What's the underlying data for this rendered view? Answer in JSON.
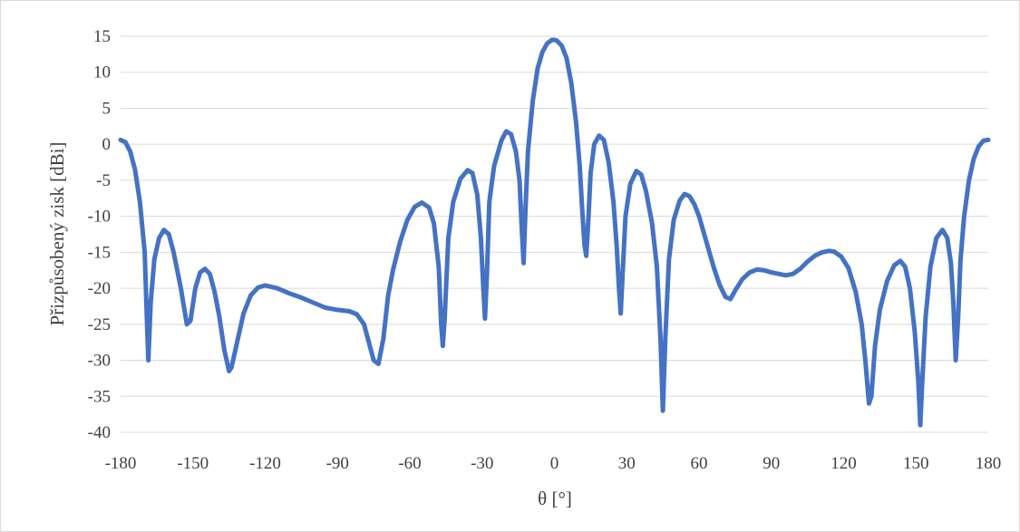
{
  "chart_data": {
    "type": "line",
    "title": "",
    "xlabel": "θ [°]",
    "ylabel": "Přizpůsobený zisk [dBi]",
    "xlim": [
      -180,
      180
    ],
    "ylim": [
      -40,
      15
    ],
    "x_ticks": [
      "-180",
      "-150",
      "-120",
      "-90",
      "-60",
      "-30",
      "0",
      "30",
      "60",
      "90",
      "120",
      "150",
      "180"
    ],
    "y_ticks": [
      "15",
      "10",
      "5",
      "0",
      "-5",
      "-10",
      "-15",
      "-20",
      "-25",
      "-30",
      "-35",
      "-40"
    ],
    "grid": true,
    "legend": "none",
    "series": [
      {
        "color": "#4472C4",
        "points": [
          [
            -180,
            0.6
          ],
          [
            -178,
            0.3
          ],
          [
            -176,
            -1.0
          ],
          [
            -174,
            -3.5
          ],
          [
            -172,
            -8.0
          ],
          [
            -170,
            -15.0
          ],
          [
            -169,
            -25.0
          ],
          [
            -168.5,
            -30.0
          ],
          [
            -167.5,
            -22.0
          ],
          [
            -166,
            -16.0
          ],
          [
            -164,
            -13.0
          ],
          [
            -162,
            -11.9
          ],
          [
            -160,
            -12.5
          ],
          [
            -158,
            -15.0
          ],
          [
            -155,
            -20.0
          ],
          [
            -152.5,
            -25.0
          ],
          [
            -151,
            -24.5
          ],
          [
            -149,
            -20.0
          ],
          [
            -147,
            -17.8
          ],
          [
            -145,
            -17.3
          ],
          [
            -143,
            -18.0
          ],
          [
            -141,
            -20.5
          ],
          [
            -139,
            -24.0
          ],
          [
            -137,
            -28.5
          ],
          [
            -135,
            -31.5
          ],
          [
            -134,
            -31.0
          ],
          [
            -132,
            -28.0
          ],
          [
            -129,
            -23.5
          ],
          [
            -126,
            -21.0
          ],
          [
            -123,
            -19.9
          ],
          [
            -120,
            -19.6
          ],
          [
            -115,
            -20.0
          ],
          [
            -110,
            -20.7
          ],
          [
            -105,
            -21.3
          ],
          [
            -100,
            -22.0
          ],
          [
            -95,
            -22.7
          ],
          [
            -90,
            -23.0
          ],
          [
            -85,
            -23.2
          ],
          [
            -82,
            -23.6
          ],
          [
            -79,
            -25.0
          ],
          [
            -77,
            -27.5
          ],
          [
            -75,
            -30.0
          ],
          [
            -73,
            -30.5
          ],
          [
            -71,
            -27.0
          ],
          [
            -69,
            -21.0
          ],
          [
            -67,
            -17.5
          ],
          [
            -64,
            -13.5
          ],
          [
            -61,
            -10.5
          ],
          [
            -58,
            -8.7
          ],
          [
            -55,
            -8.1
          ],
          [
            -52,
            -8.8
          ],
          [
            -50,
            -11.0
          ],
          [
            -48,
            -17.0
          ],
          [
            -47,
            -25.0
          ],
          [
            -46.3,
            -28.0
          ],
          [
            -45.5,
            -24.0
          ],
          [
            -44,
            -13.0
          ],
          [
            -42,
            -8.0
          ],
          [
            -39,
            -4.8
          ],
          [
            -36,
            -3.6
          ],
          [
            -34,
            -4.0
          ],
          [
            -32,
            -7.0
          ],
          [
            -30.5,
            -13.0
          ],
          [
            -29.5,
            -20.0
          ],
          [
            -28.8,
            -24.2
          ],
          [
            -28,
            -18.0
          ],
          [
            -27,
            -8.0
          ],
          [
            -25,
            -3.0
          ],
          [
            -22,
            0.5
          ],
          [
            -20,
            1.8
          ],
          [
            -18,
            1.4
          ],
          [
            -16,
            -1.0
          ],
          [
            -14.5,
            -5.0
          ],
          [
            -13.5,
            -12.0
          ],
          [
            -12.8,
            -16.5
          ],
          [
            -12,
            -9.0
          ],
          [
            -11,
            -1.0
          ],
          [
            -9,
            6.0
          ],
          [
            -7,
            10.5
          ],
          [
            -5,
            12.8
          ],
          [
            -3,
            14.0
          ],
          [
            -1,
            14.5
          ],
          [
            0,
            14.5
          ],
          [
            1,
            14.4
          ],
          [
            3,
            13.7
          ],
          [
            5,
            12.0
          ],
          [
            7,
            8.5
          ],
          [
            9,
            3.0
          ],
          [
            10.5,
            -3.0
          ],
          [
            11.5,
            -9.0
          ],
          [
            12.5,
            -14.0
          ],
          [
            13.2,
            -15.5
          ],
          [
            14,
            -11.0
          ],
          [
            15,
            -4.0
          ],
          [
            16.5,
            0.0
          ],
          [
            18.5,
            1.2
          ],
          [
            20.5,
            0.6
          ],
          [
            22.5,
            -2.5
          ],
          [
            24.5,
            -8.0
          ],
          [
            25.8,
            -14.0
          ],
          [
            26.8,
            -20.0
          ],
          [
            27.5,
            -23.5
          ],
          [
            28.3,
            -18.0
          ],
          [
            29.5,
            -10.0
          ],
          [
            31.5,
            -5.5
          ],
          [
            34,
            -3.7
          ],
          [
            36,
            -4.2
          ],
          [
            38,
            -6.5
          ],
          [
            40.5,
            -11.0
          ],
          [
            42.5,
            -17.0
          ],
          [
            44,
            -27.0
          ],
          [
            45,
            -37.0
          ],
          [
            46,
            -27.0
          ],
          [
            47.5,
            -16.0
          ],
          [
            49.5,
            -10.5
          ],
          [
            52,
            -7.8
          ],
          [
            54,
            -6.9
          ],
          [
            56,
            -7.2
          ],
          [
            58,
            -8.3
          ],
          [
            60,
            -10.0
          ],
          [
            63,
            -13.5
          ],
          [
            66,
            -17.0
          ],
          [
            68.5,
            -19.5
          ],
          [
            71,
            -21.2
          ],
          [
            73,
            -21.5
          ],
          [
            75,
            -20.3
          ],
          [
            78,
            -18.7
          ],
          [
            81,
            -17.8
          ],
          [
            84,
            -17.4
          ],
          [
            87,
            -17.5
          ],
          [
            90,
            -17.8
          ],
          [
            93,
            -18.0
          ],
          [
            96,
            -18.2
          ],
          [
            99,
            -18.0
          ],
          [
            102,
            -17.3
          ],
          [
            105,
            -16.3
          ],
          [
            108,
            -15.5
          ],
          [
            111,
            -15.0
          ],
          [
            114,
            -14.8
          ],
          [
            116,
            -14.9
          ],
          [
            119,
            -15.6
          ],
          [
            122,
            -17.2
          ],
          [
            125,
            -20.5
          ],
          [
            127.5,
            -25.0
          ],
          [
            129,
            -30.0
          ],
          [
            130.5,
            -36.0
          ],
          [
            131.5,
            -35.0
          ],
          [
            133,
            -28.0
          ],
          [
            135,
            -23.0
          ],
          [
            138,
            -19.0
          ],
          [
            141,
            -16.8
          ],
          [
            143.5,
            -16.2
          ],
          [
            145.5,
            -17.0
          ],
          [
            147.5,
            -20.0
          ],
          [
            149.5,
            -26.0
          ],
          [
            151,
            -33.0
          ],
          [
            151.8,
            -39.0
          ],
          [
            152.6,
            -33.0
          ],
          [
            154,
            -24.0
          ],
          [
            156,
            -17.0
          ],
          [
            158.5,
            -13.0
          ],
          [
            161,
            -11.9
          ],
          [
            163,
            -13.0
          ],
          [
            164.5,
            -16.5
          ],
          [
            165.5,
            -22.0
          ],
          [
            166.5,
            -30.0
          ],
          [
            167.5,
            -24.0
          ],
          [
            168.5,
            -16.0
          ],
          [
            170,
            -10.0
          ],
          [
            172,
            -5.0
          ],
          [
            174,
            -2.0
          ],
          [
            176,
            -0.3
          ],
          [
            178,
            0.5
          ],
          [
            180,
            0.6
          ]
        ]
      }
    ]
  }
}
